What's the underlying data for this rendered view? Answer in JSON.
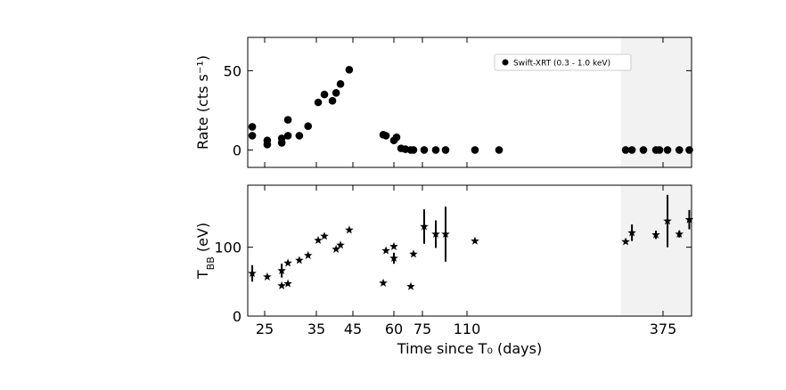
{
  "chart_data": [
    {
      "type": "scatter",
      "ylabel": "Rate (cts s⁻¹)",
      "ylim": [
        -11,
        71
      ],
      "yticks": [
        0,
        50
      ],
      "shaded_xrange": [
        318,
        413
      ],
      "legend": "upper right",
      "series": [
        {
          "name": "Swift-XRT (0.3 - 1.0 keV)",
          "color": "#000000",
          "marker": "circle",
          "x": [
            22.8,
            22.8,
            25.5,
            25.5,
            28.3,
            28.3,
            29.5,
            29.5,
            31.7,
            33.4,
            35.5,
            37.2,
            39.4,
            40.4,
            41.6,
            44,
            56.1,
            57.1,
            60,
            61.4,
            63.8,
            66.1,
            68.9,
            70.3,
            76.4,
            85.5,
            93.2,
            120.8,
            153.4,
            324.5,
            333,
            348.5,
            365.4,
            370.2,
            381,
            396.7,
            410
          ],
          "values": [
            14.6,
            9,
            6,
            3.4,
            7.3,
            4.5,
            19,
            9,
            9,
            15,
            30,
            35,
            31,
            36,
            41.6,
            50.6,
            9.6,
            9,
            6,
            8,
            1,
            0.5,
            0,
            0,
            0,
            0,
            0,
            0,
            0,
            0,
            0,
            0,
            0,
            0,
            0,
            0,
            0
          ]
        }
      ]
    },
    {
      "type": "scatter",
      "ylabel": [
        "T",
        "BB",
        " (eV)"
      ],
      "xlabel": "Time since T₀ (days)",
      "ylim": [
        0,
        190
      ],
      "yticks": [
        0,
        100
      ],
      "xlim": [
        22,
        413
      ],
      "xticks": [
        25,
        35,
        45,
        60,
        75,
        110,
        375
      ],
      "shaded_xrange": [
        318,
        413
      ],
      "series": [
        {
          "color": "#000000",
          "marker": "star",
          "x": [
            22.8,
            25.5,
            28.3,
            28.3,
            29.5,
            29.5,
            31.7,
            33.4,
            35.5,
            37.2,
            40.4,
            41.6,
            44,
            56.1,
            57.1,
            60,
            60,
            68.9,
            70.3,
            76.4,
            85.5,
            93.2,
            120.8,
            324.5,
            333,
            365.4,
            381,
            396.7,
            410
          ],
          "values": [
            62,
            57,
            66,
            44,
            77,
            47,
            81,
            88,
            110,
            116,
            97,
            103,
            125,
            48,
            95,
            101,
            84,
            43,
            90,
            130,
            119,
            119,
            109,
            108,
            121,
            118,
            138,
            119,
            140
          ],
          "errors": [
            12,
            null,
            10,
            null,
            null,
            null,
            null,
            null,
            null,
            null,
            null,
            null,
            null,
            null,
            null,
            null,
            8,
            null,
            null,
            25,
            20,
            40,
            null,
            null,
            12,
            6,
            38,
            5,
            14
          ]
        }
      ]
    }
  ]
}
